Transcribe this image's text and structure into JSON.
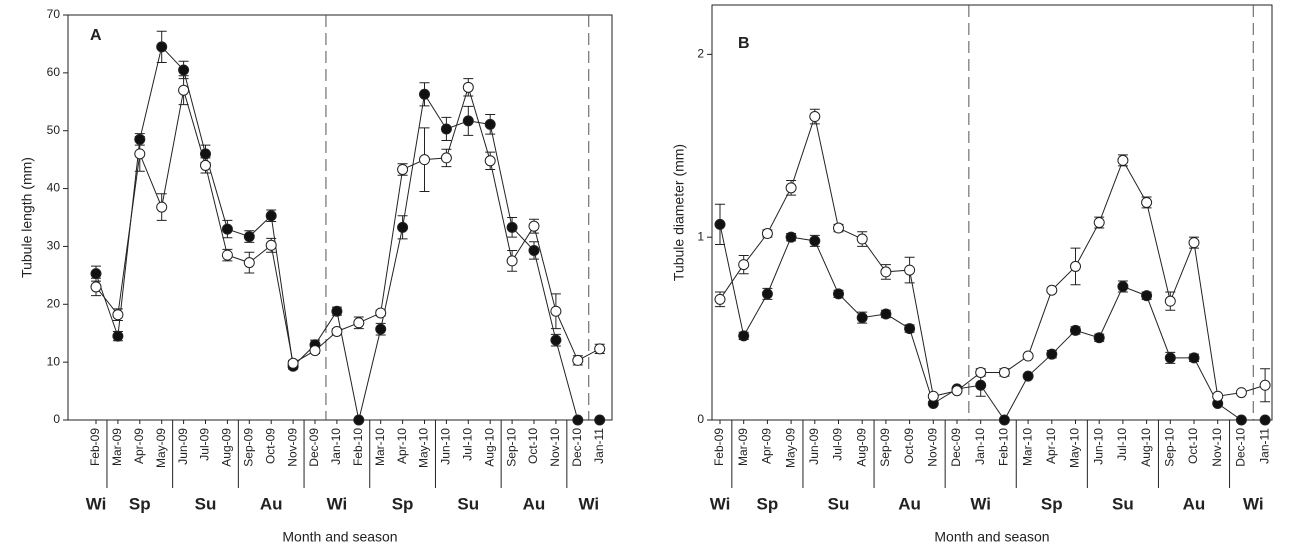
{
  "chart_data": [
    {
      "type": "line",
      "panel_label": "A",
      "y_label": "Tubule length (mm)",
      "x_label": "Month and season",
      "categories": [
        "Feb-09",
        "Mar-09",
        "Apr-09",
        "May-09",
        "Jun-09",
        "Jul-09",
        "Aug-09",
        "Sep-09",
        "Oct-09",
        "Nov-09",
        "Dec-09",
        "Jan-10",
        "Feb-10",
        "Mar-10",
        "Apr-10",
        "May-10",
        "Jun-10",
        "Jul-10",
        "Aug-10",
        "Sep-10",
        "Oct-10",
        "Nov-10",
        "Dec-10",
        "Jan-11"
      ],
      "seasons": [
        {
          "label": "Wi",
          "start": "Feb-09",
          "end": "Feb-09"
        },
        {
          "label": "Sp",
          "start": "Mar-09",
          "end": "May-09"
        },
        {
          "label": "Su",
          "start": "Jun-09",
          "end": "Aug-09"
        },
        {
          "label": "Au",
          "start": "Sep-09",
          "end": "Nov-09"
        },
        {
          "label": "Wi",
          "start": "Dec-09",
          "end": "Feb-10"
        },
        {
          "label": "Sp",
          "start": "Mar-10",
          "end": "May-10"
        },
        {
          "label": "Su",
          "start": "Jun-10",
          "end": "Aug-10"
        },
        {
          "label": "Au",
          "start": "Sep-10",
          "end": "Nov-10"
        },
        {
          "label": "Wi",
          "start": "Dec-10",
          "end": "Jan-11"
        }
      ],
      "ylim": [
        0,
        70
      ],
      "yticks": [
        0,
        10,
        20,
        30,
        40,
        50,
        60,
        70
      ],
      "series": [
        {
          "color": "#111111",
          "values": [
            25.3,
            14.5,
            48.5,
            64.5,
            60.5,
            46,
            33,
            31.7,
            35.3,
            9.3,
            13,
            18.8,
            0,
            15.7,
            33.3,
            56.3,
            50.3,
            51.7,
            51.1,
            33.3,
            29.3,
            13.8,
            0,
            0
          ],
          "errors": [
            1.3,
            0.8,
            1,
            2.7,
            1.5,
            1.5,
            1.5,
            1,
            1,
            0.5,
            0.8,
            0.7,
            0,
            1,
            2,
            2,
            2,
            2.5,
            1.7,
            1.7,
            1.5,
            1,
            0,
            0
          ]
        },
        {
          "color": "#ffffff",
          "values": [
            23,
            18.2,
            46,
            36.8,
            57,
            44,
            28.5,
            27.2,
            30.2,
            9.8,
            12,
            15.3,
            16.8,
            18.5,
            43.3,
            45,
            45.3,
            57.5,
            44.8,
            27.5,
            33.5,
            18.8,
            10.3,
            12.3
          ],
          "errors": [
            1.5,
            1,
            3,
            2.3,
            2.5,
            1.3,
            1,
            1.8,
            1.2,
            0.5,
            0.5,
            0.5,
            1,
            0.5,
            1,
            5.5,
            1.5,
            1.5,
            1.5,
            1.8,
            1.2,
            3,
            0.8,
            0.8
          ]
        }
      ]
    },
    {
      "type": "line",
      "panel_label": "B",
      "y_label": "Tubule diameter (mm)",
      "x_label": "Month and season",
      "categories": [
        "Feb-09",
        "Mar-09",
        "Apr-09",
        "May-09",
        "Jun-09",
        "Jul-09",
        "Aug-09",
        "Sep-09",
        "Oct-09",
        "Nov-09",
        "Dec-09",
        "Jan-10",
        "Feb-10",
        "Mar-10",
        "Apr-10",
        "May-10",
        "Jun-10",
        "Jul-10",
        "Aug-10",
        "Sep-10",
        "Oct-10",
        "Nov-10",
        "Dec-10",
        "Jan-11"
      ],
      "seasons": [
        {
          "label": "Wi",
          "start": "Feb-09",
          "end": "Feb-09"
        },
        {
          "label": "Sp",
          "start": "Mar-09",
          "end": "May-09"
        },
        {
          "label": "Su",
          "start": "Jun-09",
          "end": "Aug-09"
        },
        {
          "label": "Au",
          "start": "Sep-09",
          "end": "Nov-09"
        },
        {
          "label": "Wi",
          "start": "Dec-09",
          "end": "Feb-10"
        },
        {
          "label": "Sp",
          "start": "Mar-10",
          "end": "May-10"
        },
        {
          "label": "Su",
          "start": "Jun-10",
          "end": "Aug-10"
        },
        {
          "label": "Au",
          "start": "Sep-10",
          "end": "Nov-10"
        },
        {
          "label": "Wi",
          "start": "Dec-10",
          "end": "Jan-11"
        }
      ],
      "ylim": [
        0,
        2.27
      ],
      "yticks": [
        0,
        1,
        2
      ],
      "series": [
        {
          "color": "#111111",
          "values": [
            1.07,
            0.46,
            0.69,
            1.0,
            0.98,
            0.69,
            0.56,
            0.58,
            0.5,
            0.09,
            0.17,
            0.19,
            0,
            0.24,
            0.36,
            0.49,
            0.45,
            0.73,
            0.68,
            0.34,
            0.34,
            0.09,
            0,
            0
          ],
          "errors": [
            0.11,
            0.02,
            0.03,
            0.02,
            0.03,
            0.02,
            0.03,
            0.02,
            0.02,
            0.01,
            0.01,
            0.06,
            0,
            0.01,
            0.02,
            0.02,
            0.02,
            0.03,
            0.02,
            0.03,
            0.02,
            0.01,
            0,
            0
          ]
        },
        {
          "color": "#ffffff",
          "values": [
            0.66,
            0.85,
            1.02,
            1.27,
            1.66,
            1.05,
            0.99,
            0.81,
            0.82,
            0.13,
            0.16,
            0.26,
            0.26,
            0.35,
            0.71,
            0.84,
            1.08,
            1.42,
            1.19,
            0.65,
            0.97,
            0.13,
            0.15,
            0.19
          ],
          "errors": [
            0.04,
            0.05,
            0.02,
            0.04,
            0.04,
            0.02,
            0.04,
            0.04,
            0.07,
            0.01,
            0.01,
            0.02,
            0.02,
            0.01,
            0.01,
            0.1,
            0.03,
            0.03,
            0.03,
            0.05,
            0.03,
            0.01,
            0.01,
            0.09
          ]
        }
      ]
    }
  ]
}
